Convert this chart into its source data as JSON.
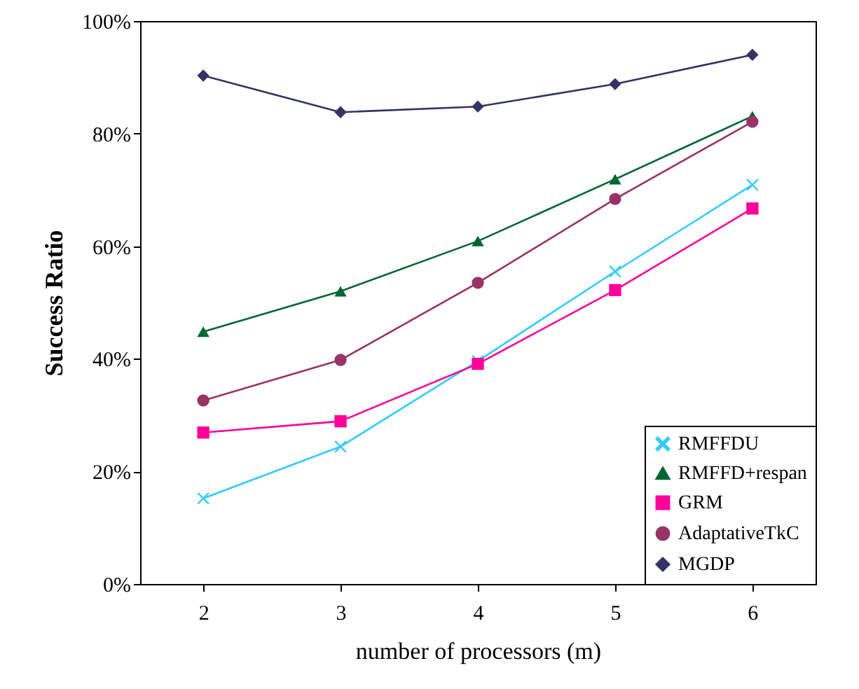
{
  "chart_data": {
    "type": "line",
    "xlabel": "number of processors (m)",
    "ylabel": "Success Ratio",
    "categories": [
      "2",
      "3",
      "4",
      "5",
      "6"
    ],
    "ylim": [
      0,
      100
    ],
    "yticks": [
      {
        "value": 0,
        "label": "0%"
      },
      {
        "value": 20,
        "label": "20%"
      },
      {
        "value": 40,
        "label": "40%"
      },
      {
        "value": 60,
        "label": "60%"
      },
      {
        "value": 80,
        "label": "80%"
      },
      {
        "value": 100,
        "label": "100%"
      }
    ],
    "grid": false,
    "legend": "bottom right",
    "line_style": "solid",
    "series": [
      {
        "name": "RMFFDU",
        "color": "#33ccff",
        "marker": "cross",
        "values": [
          15.2,
          24.4,
          39.6,
          55.5,
          70.9
        ]
      },
      {
        "name": "RMFFD+respan",
        "color": "#006633",
        "marker": "triangle",
        "values": [
          44.8,
          52.0,
          60.9,
          71.9,
          83.1
        ]
      },
      {
        "name": "GRM",
        "color": "#ff0099",
        "marker": "square",
        "values": [
          26.9,
          28.9,
          39.1,
          52.2,
          66.7
        ]
      },
      {
        "name": "AdaptativeTkC",
        "color": "#993366",
        "marker": "circle",
        "values": [
          32.6,
          39.8,
          53.5,
          68.4,
          82.1
        ]
      },
      {
        "name": "MGDP",
        "color": "#333366",
        "marker": "diamond",
        "values": [
          90.3,
          83.8,
          84.8,
          88.8,
          94.0
        ]
      }
    ]
  }
}
